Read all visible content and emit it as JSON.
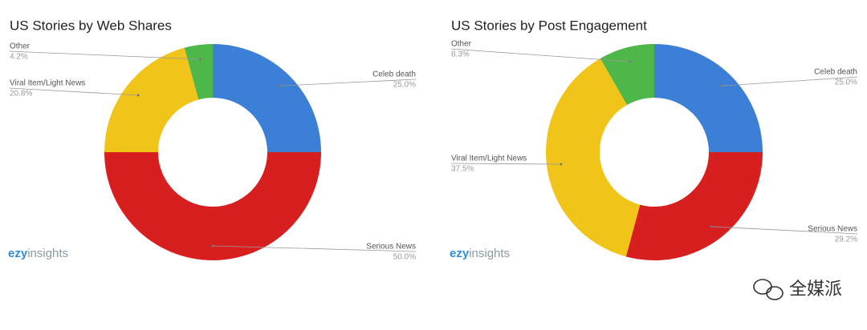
{
  "chart_data": [
    {
      "type": "donut",
      "title": "US Stories by Web Shares",
      "categories": [
        "Celeb death",
        "Serious News",
        "Viral Item/Light News",
        "Other"
      ],
      "values": [
        25,
        50,
        20.8,
        4.2
      ],
      "value_labels": [
        "25.0%",
        "50.0%",
        "20.8%",
        "4.2%"
      ],
      "colors": [
        "#3c7fd6",
        "#d81f1f",
        "#f0c419",
        "#4db849"
      ],
      "logo": [
        "ezy",
        "insights"
      ]
    },
    {
      "type": "donut",
      "title": "US Stories by Post Engagement",
      "categories": [
        "Celeb death",
        "Serious News",
        "Viral Item/Light News",
        "Other"
      ],
      "values": [
        25,
        29.2,
        37.5,
        8.3
      ],
      "value_labels": [
        "25.0%",
        "29.2%",
        "37.5%",
        "8.3%"
      ],
      "colors": [
        "#3c7fd6",
        "#d81f1f",
        "#f0c419",
        "#4db849"
      ],
      "logo": [
        "ezy",
        "insights"
      ]
    }
  ],
  "watermark": "全媒派"
}
